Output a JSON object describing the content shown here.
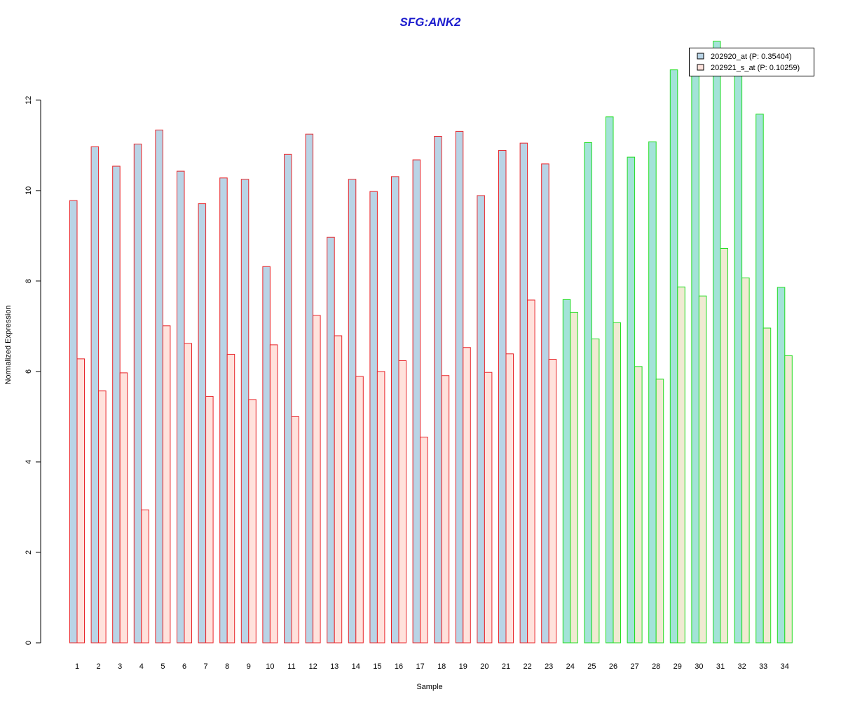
{
  "chart_data": {
    "type": "bar",
    "title": "SFG:ANK2",
    "xlabel": "Sample",
    "ylabel": "Normalized Expression",
    "ylim": [
      0,
      13.3
    ],
    "yticks": [
      0,
      2,
      4,
      6,
      8,
      10,
      12
    ],
    "categories": [
      "1",
      "2",
      "3",
      "4",
      "5",
      "6",
      "7",
      "8",
      "9",
      "10",
      "11",
      "12",
      "13",
      "14",
      "15",
      "16",
      "17",
      "18",
      "19",
      "20",
      "21",
      "22",
      "23",
      "24",
      "25",
      "26",
      "27",
      "28",
      "29",
      "30",
      "31",
      "32",
      "33",
      "34"
    ],
    "series": [
      {
        "name": "202920_at (P: 0.35404)",
        "values": [
          9.78,
          10.97,
          10.54,
          11.03,
          11.34,
          10.43,
          9.71,
          10.28,
          10.25,
          8.32,
          10.8,
          11.25,
          8.97,
          10.25,
          9.98,
          10.31,
          10.68,
          11.2,
          11.31,
          9.89,
          10.89,
          11.05,
          10.59,
          7.59,
          11.06,
          11.63,
          10.74,
          11.08,
          12.67,
          12.6,
          13.3,
          12.6,
          11.69,
          7.86
        ],
        "fill_group_a": "#b9d4e6",
        "fill_group_b": "#a3e3d8"
      },
      {
        "name": "202921_s_at (P: 0.10259)",
        "values": [
          6.28,
          5.57,
          5.97,
          2.94,
          7.01,
          6.62,
          5.45,
          6.38,
          5.38,
          6.59,
          5.0,
          7.24,
          6.79,
          5.89,
          6.0,
          6.24,
          4.55,
          5.91,
          6.53,
          5.98,
          6.39,
          7.58,
          6.27,
          7.31,
          6.72,
          7.08,
          6.11,
          5.83,
          7.87,
          7.67,
          8.72,
          8.07,
          6.96,
          6.35
        ],
        "fill_group_a": "#ffe2dc",
        "fill_group_b": "#f0ead2"
      }
    ],
    "groups": [
      {
        "samples_from": 1,
        "samples_to": 23,
        "outline": "#e8262b"
      },
      {
        "samples_from": 24,
        "samples_to": 34,
        "outline": "#22dd22"
      }
    ],
    "legend_position": "top-right",
    "legend_fill_colors": [
      "#b9d4e6",
      "#ffe2dc"
    ],
    "title_color": "#1a1acd",
    "grid": false
  }
}
